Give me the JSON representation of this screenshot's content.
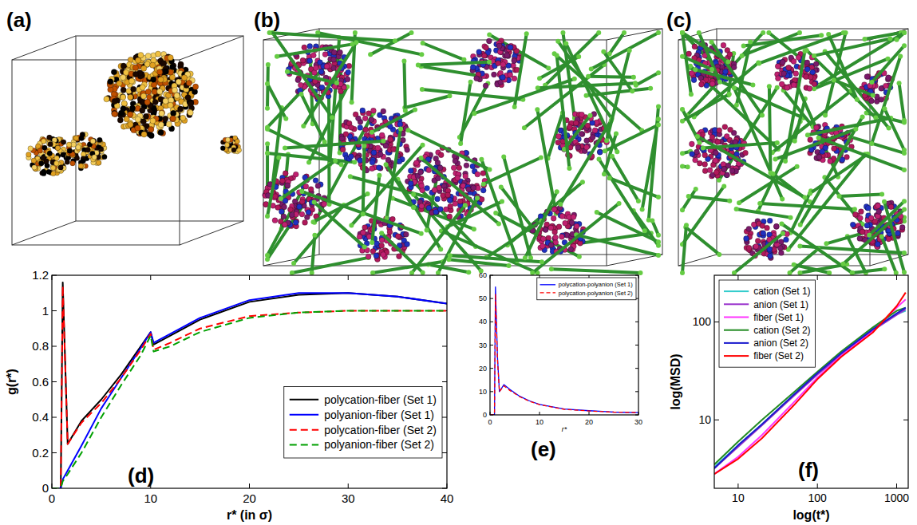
{
  "panel_labels": [
    "(a)",
    "(b)",
    "(c)",
    "(d)",
    "(e)",
    "(f)"
  ],
  "chart_data": [
    {
      "type": "line",
      "x_label": "r* (in σ)",
      "y_label": "g(r*)",
      "x": [
        0,
        0.9,
        1.1,
        1.6,
        3,
        5,
        7,
        9,
        10,
        10.3,
        12,
        15,
        20,
        25,
        30,
        35,
        40
      ],
      "series": [
        {
          "name": "polycation-fiber (Set 1)",
          "color": "#000000",
          "line_style": "solid",
          "values": [
            0,
            0,
            1.16,
            0.25,
            0.38,
            0.5,
            0.64,
            0.8,
            0.88,
            0.81,
            0.86,
            0.95,
            1.05,
            1.09,
            1.1,
            1.08,
            1.04
          ]
        },
        {
          "name": "polyanion-fiber (Set 1)",
          "color": "#0000ff",
          "line_style": "solid",
          "values": [
            0,
            0,
            0.05,
            0.1,
            0.24,
            0.45,
            0.62,
            0.79,
            0.88,
            0.82,
            0.87,
            0.96,
            1.06,
            1.1,
            1.1,
            1.08,
            1.04
          ]
        },
        {
          "name": "polycation-fiber (Set 2)",
          "color": "#ff0000",
          "line_style": "dashed",
          "values": [
            0,
            0,
            1.14,
            0.25,
            0.37,
            0.48,
            0.62,
            0.78,
            0.87,
            0.78,
            0.82,
            0.9,
            0.97,
            0.99,
            1.0,
            1.0,
            1.0
          ]
        },
        {
          "name": "polyanion-fiber (Set 2)",
          "color": "#00a000",
          "line_style": "dashed",
          "values": [
            0,
            0,
            0.04,
            0.08,
            0.2,
            0.4,
            0.58,
            0.75,
            0.86,
            0.77,
            0.8,
            0.88,
            0.96,
            0.99,
            1.0,
            1.0,
            1.0
          ]
        }
      ],
      "xlim": [
        0,
        40
      ],
      "ylim": [
        0,
        1.2
      ],
      "xticks": [
        0,
        10,
        20,
        30,
        40
      ],
      "yticks": [
        0,
        0.2,
        0.4,
        0.6,
        0.8,
        1,
        1.2
      ],
      "legend": "lower right"
    },
    {
      "type": "line",
      "x_label": "r*",
      "x": [
        0,
        0.9,
        1.1,
        1.5,
        1.9,
        2.8,
        4,
        6,
        8,
        10,
        15,
        20,
        25,
        30
      ],
      "series": [
        {
          "name": "polycation-polyanion (Set 1)",
          "color": "#0000ff",
          "line_style": "solid",
          "values": [
            0,
            0,
            55,
            25,
            10,
            13,
            11,
            8,
            6,
            4.5,
            2.5,
            1.8,
            1.2,
            1
          ]
        },
        {
          "name": "polycation-polyanion (Set 2)",
          "color": "#ff0000",
          "line_style": "dashed",
          "values": [
            0,
            0,
            52,
            24,
            10,
            12.5,
            10.5,
            7.8,
            5.8,
            4.4,
            2.4,
            1.7,
            1.2,
            1
          ]
        }
      ],
      "xlim": [
        0,
        30
      ],
      "ylim": [
        0,
        60
      ],
      "xticks": [
        0,
        10,
        20,
        30
      ],
      "yticks": [
        0,
        10,
        20,
        30,
        40,
        50,
        60
      ],
      "legend": "upper right"
    },
    {
      "type": "line",
      "x_label": "log(t*)",
      "y_label": "log(MSD)",
      "log": true,
      "x": [
        5,
        10,
        20,
        50,
        100,
        200,
        500,
        1000,
        1300
      ],
      "series": [
        {
          "name": "cation (Set 1)",
          "color": "#33cccc",
          "line_style": "solid",
          "values": [
            3.3,
            5.5,
            9,
            18,
            30,
            48,
            85,
            120,
            130
          ]
        },
        {
          "name": "anion (Set 1)",
          "color": "#9932cc",
          "line_style": "solid",
          "values": [
            3.2,
            5.3,
            8.8,
            17.5,
            29,
            46,
            82,
            118,
            135
          ]
        },
        {
          "name": "fiber (Set 1)",
          "color": "#ff33ff",
          "line_style": "solid",
          "values": [
            2.8,
            4.2,
            7,
            15,
            27,
            45,
            80,
            140,
            170
          ]
        },
        {
          "name": "cation (Set 2)",
          "color": "#228b22",
          "line_style": "solid",
          "values": [
            3.5,
            6,
            10,
            19,
            31,
            50,
            88,
            130,
            140
          ]
        },
        {
          "name": "anion (Set 2)",
          "color": "#1a1acd",
          "line_style": "solid",
          "values": [
            3.2,
            5.5,
            9,
            18,
            30,
            48,
            84,
            122,
            140
          ]
        },
        {
          "name": "fiber (Set 2)",
          "color": "#ff0000",
          "line_style": "solid",
          "values": [
            2.8,
            4.0,
            6.5,
            14,
            26,
            44,
            78,
            145,
            200
          ]
        }
      ],
      "xlim": [
        5,
        1400
      ],
      "ylim": [
        2,
        300
      ],
      "xticks": [
        10,
        100,
        1000
      ],
      "yticks": [
        10,
        100
      ],
      "legend": "upper left"
    }
  ]
}
